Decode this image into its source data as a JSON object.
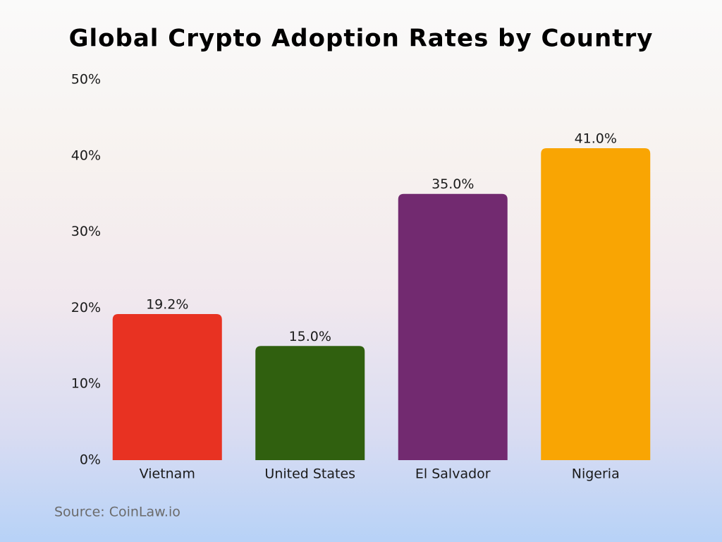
{
  "chart_data": {
    "type": "bar",
    "title": "Global Crypto Adoption Rates by Country",
    "categories": [
      "Vietnam",
      "United States",
      "El Salvador",
      "Nigeria"
    ],
    "values": [
      19.2,
      15.0,
      35.0,
      41.0
    ],
    "value_labels": [
      "19.2%",
      "15.0%",
      "35.0%",
      "41.0%"
    ],
    "colors": [
      "#e83222",
      "#30600f",
      "#722a70",
      "#f9a503"
    ],
    "ylim": [
      0,
      50
    ],
    "yticks": [
      {
        "value": 0,
        "label": "0%"
      },
      {
        "value": 10,
        "label": "10%"
      },
      {
        "value": 20,
        "label": "20%"
      },
      {
        "value": 30,
        "label": "30%"
      },
      {
        "value": 40,
        "label": "40%"
      },
      {
        "value": 50,
        "label": "50%"
      }
    ],
    "grid": false,
    "source": "Source: CoinLaw.io"
  }
}
